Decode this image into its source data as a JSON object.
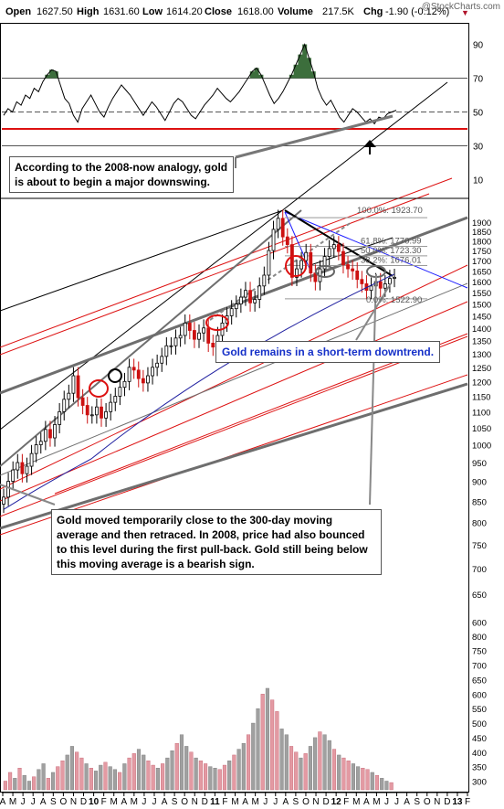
{
  "header": {
    "open_label": "Open",
    "open_value": "1627.50",
    "high_label": "High",
    "high_value": "1631.60",
    "low_label": "Low",
    "low_value": "1614.20",
    "close_label": "Close",
    "close_value": "1618.00",
    "volume_label": "Volume",
    "volume_value": "217.5K",
    "chg_label": "Chg",
    "chg_value": "-1.90 (-0.12%)",
    "down_arrow": "▼",
    "credit": "@StockCharts.com"
  },
  "annotations": {
    "rsi_note": "According to the 2008-now analogy, gold is about to begin a major downswing.",
    "downtrend_note": "Gold remains in a short-term downtrend.",
    "ma_note": "Gold moved temporarily close to the 300-day moving average and then retraced. In 2008, price had also bounced to this level during the first pull-back. Gold still being below this moving average is a bearish sign."
  },
  "fib_labels": [
    {
      "text": "100.0%: 1923.70",
      "value": 1923.7
    },
    {
      "text": "61.8%: 1770.99",
      "value": 1771
    },
    {
      "text": "50.0%: 1723.30",
      "value": 1723.3
    },
    {
      "text": "38.2%: 1676.01",
      "value": 1676
    },
    {
      "text": "0.0%: 1522.90",
      "value": 1522.9
    }
  ],
  "colors": {
    "rsi_fill": "#3c6e3c",
    "rsi_line": "#000000",
    "ma_line": "#2020a0",
    "red_line": "#dd1111",
    "blue_line": "#1a1aff",
    "gray_line": "#6e6e6e",
    "candle_up": "#000000",
    "candle_down": "#cc1111",
    "volume_up": "#a0a0a0",
    "volume_down": "#e39aa3"
  },
  "chart_data": {
    "type": "candlestick",
    "rsi": {
      "ticks": [
        10,
        30,
        50,
        70,
        90
      ],
      "ylim": [
        0,
        100
      ],
      "reference_lines": [
        30,
        50,
        70
      ],
      "red_line": 40,
      "values": [
        48,
        52,
        50,
        56,
        54,
        60,
        58,
        64,
        62,
        68,
        72,
        75,
        74,
        66,
        58,
        55,
        48,
        44,
        52,
        56,
        60,
        55,
        50,
        47,
        53,
        58,
        62,
        66,
        63,
        60,
        56,
        52,
        48,
        52,
        56,
        53,
        49,
        45,
        50,
        55,
        58,
        56,
        52,
        48,
        46,
        50,
        54,
        57,
        60,
        64,
        61,
        58,
        56,
        59,
        62,
        66,
        70,
        74,
        76,
        72,
        66,
        60,
        55,
        58,
        62,
        67,
        72,
        78,
        84,
        90,
        82,
        74,
        64,
        58,
        54,
        57,
        52,
        47,
        44,
        48,
        52,
        50,
        47,
        44,
        46,
        43,
        47,
        46,
        49,
        50,
        51
      ]
    },
    "price": {
      "y_axis_ticks": [
        600,
        650,
        700,
        750,
        800,
        850,
        900,
        950,
        1000,
        1050,
        1100,
        1150,
        1200,
        1250,
        1300,
        1350,
        1400,
        1450,
        1500,
        1550,
        1600,
        1650,
        1700,
        1750,
        1800,
        1850,
        1900
      ],
      "ylim": [
        570,
        1960
      ],
      "scale": "log",
      "close": [
        860,
        900,
        930,
        950,
        920,
        940,
        975,
        1000,
        1010,
        1045,
        1020,
        1060,
        1100,
        1140,
        1160,
        1220,
        1145,
        1120,
        1090,
        1090,
        1115,
        1080,
        1100,
        1130,
        1150,
        1180,
        1200,
        1250,
        1240,
        1210,
        1195,
        1220,
        1250,
        1265,
        1290,
        1330,
        1330,
        1360,
        1370,
        1420,
        1390,
        1355,
        1380,
        1400,
        1340,
        1325,
        1370,
        1420,
        1450,
        1480,
        1500,
        1530,
        1560,
        1505,
        1520,
        1580,
        1630,
        1750,
        1860,
        1920,
        1820,
        1780,
        1620,
        1660,
        1700,
        1740,
        1640,
        1600,
        1660,
        1720,
        1760,
        1780,
        1745,
        1680,
        1660,
        1650,
        1610,
        1590,
        1560,
        1580,
        1600,
        1570,
        1590,
        1615,
        1620
      ],
      "ma300": [
        830,
        840,
        850,
        860,
        870,
        880,
        890,
        900,
        910,
        920,
        930,
        940,
        950,
        960,
        975,
        990,
        1005,
        1020,
        1035,
        1050,
        1065,
        1080,
        1095,
        1110,
        1125,
        1140,
        1155,
        1170,
        1185,
        1200,
        1215,
        1230,
        1245,
        1260,
        1275,
        1290,
        1305,
        1320,
        1335,
        1350,
        1365,
        1380,
        1395,
        1410,
        1425,
        1440,
        1455,
        1470,
        1485,
        1500,
        1515,
        1530,
        1545,
        1560,
        1575,
        1590,
        1605,
        1620,
        1635
      ]
    },
    "volume": {
      "y_axis_ticks": [
        300,
        350,
        400,
        450,
        500,
        550,
        600,
        650,
        700,
        750,
        800
      ],
      "ylim": [
        270,
        850
      ],
      "values": [
        300,
        330,
        310,
        345,
        320,
        300,
        315,
        340,
        360,
        310,
        330,
        350,
        370,
        390,
        420,
        400,
        380,
        360,
        345,
        335,
        355,
        365,
        350,
        340,
        330,
        360,
        380,
        395,
        410,
        390,
        370,
        355,
        345,
        360,
        380,
        405,
        430,
        460,
        420,
        400,
        380,
        370,
        360,
        350,
        345,
        340,
        355,
        370,
        390,
        410,
        430,
        460,
        500,
        550,
        600,
        620,
        580,
        540,
        480,
        460,
        420,
        400,
        380,
        395,
        420,
        450,
        470,
        460,
        440,
        410,
        390,
        380,
        370,
        360,
        350,
        345,
        340,
        330,
        320,
        310,
        300,
        295
      ]
    },
    "x_axis_labels": [
      "A",
      "M",
      "J",
      "J",
      "A",
      "S",
      "O",
      "N",
      "D",
      "10",
      "F",
      "M",
      "A",
      "M",
      "J",
      "J",
      "A",
      "S",
      "O",
      "N",
      "D",
      "11",
      "F",
      "M",
      "A",
      "M",
      "J",
      "J",
      "A",
      "S",
      "O",
      "N",
      "D",
      "12",
      "F",
      "M",
      "A",
      "M",
      "J",
      "J",
      "A",
      "S",
      "O",
      "N",
      "D",
      "13",
      "F"
    ]
  }
}
